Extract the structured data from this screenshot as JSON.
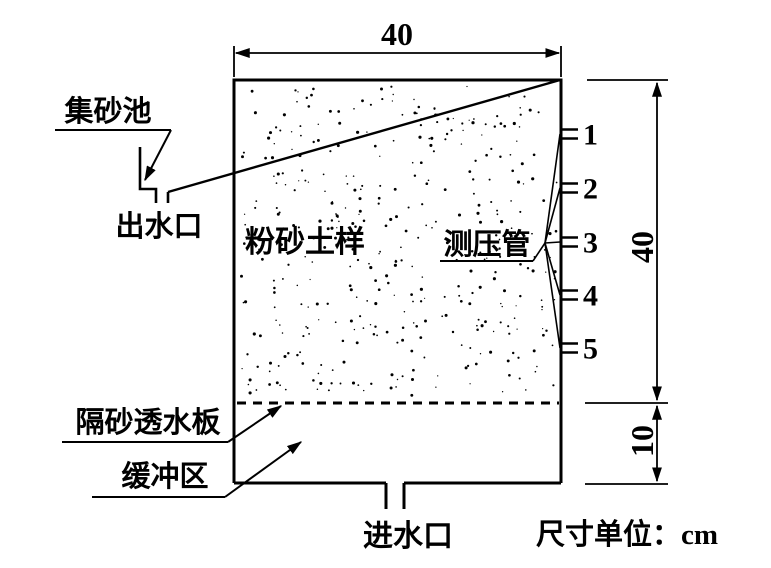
{
  "diagram": {
    "labels": {
      "sand_collection_pool": "集砂池",
      "water_outlet": "出水口",
      "silt_sand_sample": "粉砂土样",
      "piezometer_tubes": "测压管",
      "sand_separating_permeable_plate": "隔砂透水板",
      "buffer_zone": "缓冲区",
      "water_inlet": "进水口"
    },
    "dimensions": {
      "top_width_cm": "40",
      "sample_height_cm": "40",
      "buffer_height_cm": "10",
      "unit_note": "尺寸单位：cm"
    },
    "piezometer_taps": [
      "1",
      "2",
      "3",
      "4",
      "5"
    ],
    "colors": {
      "line": "#000000",
      "background": "#ffffff"
    }
  }
}
